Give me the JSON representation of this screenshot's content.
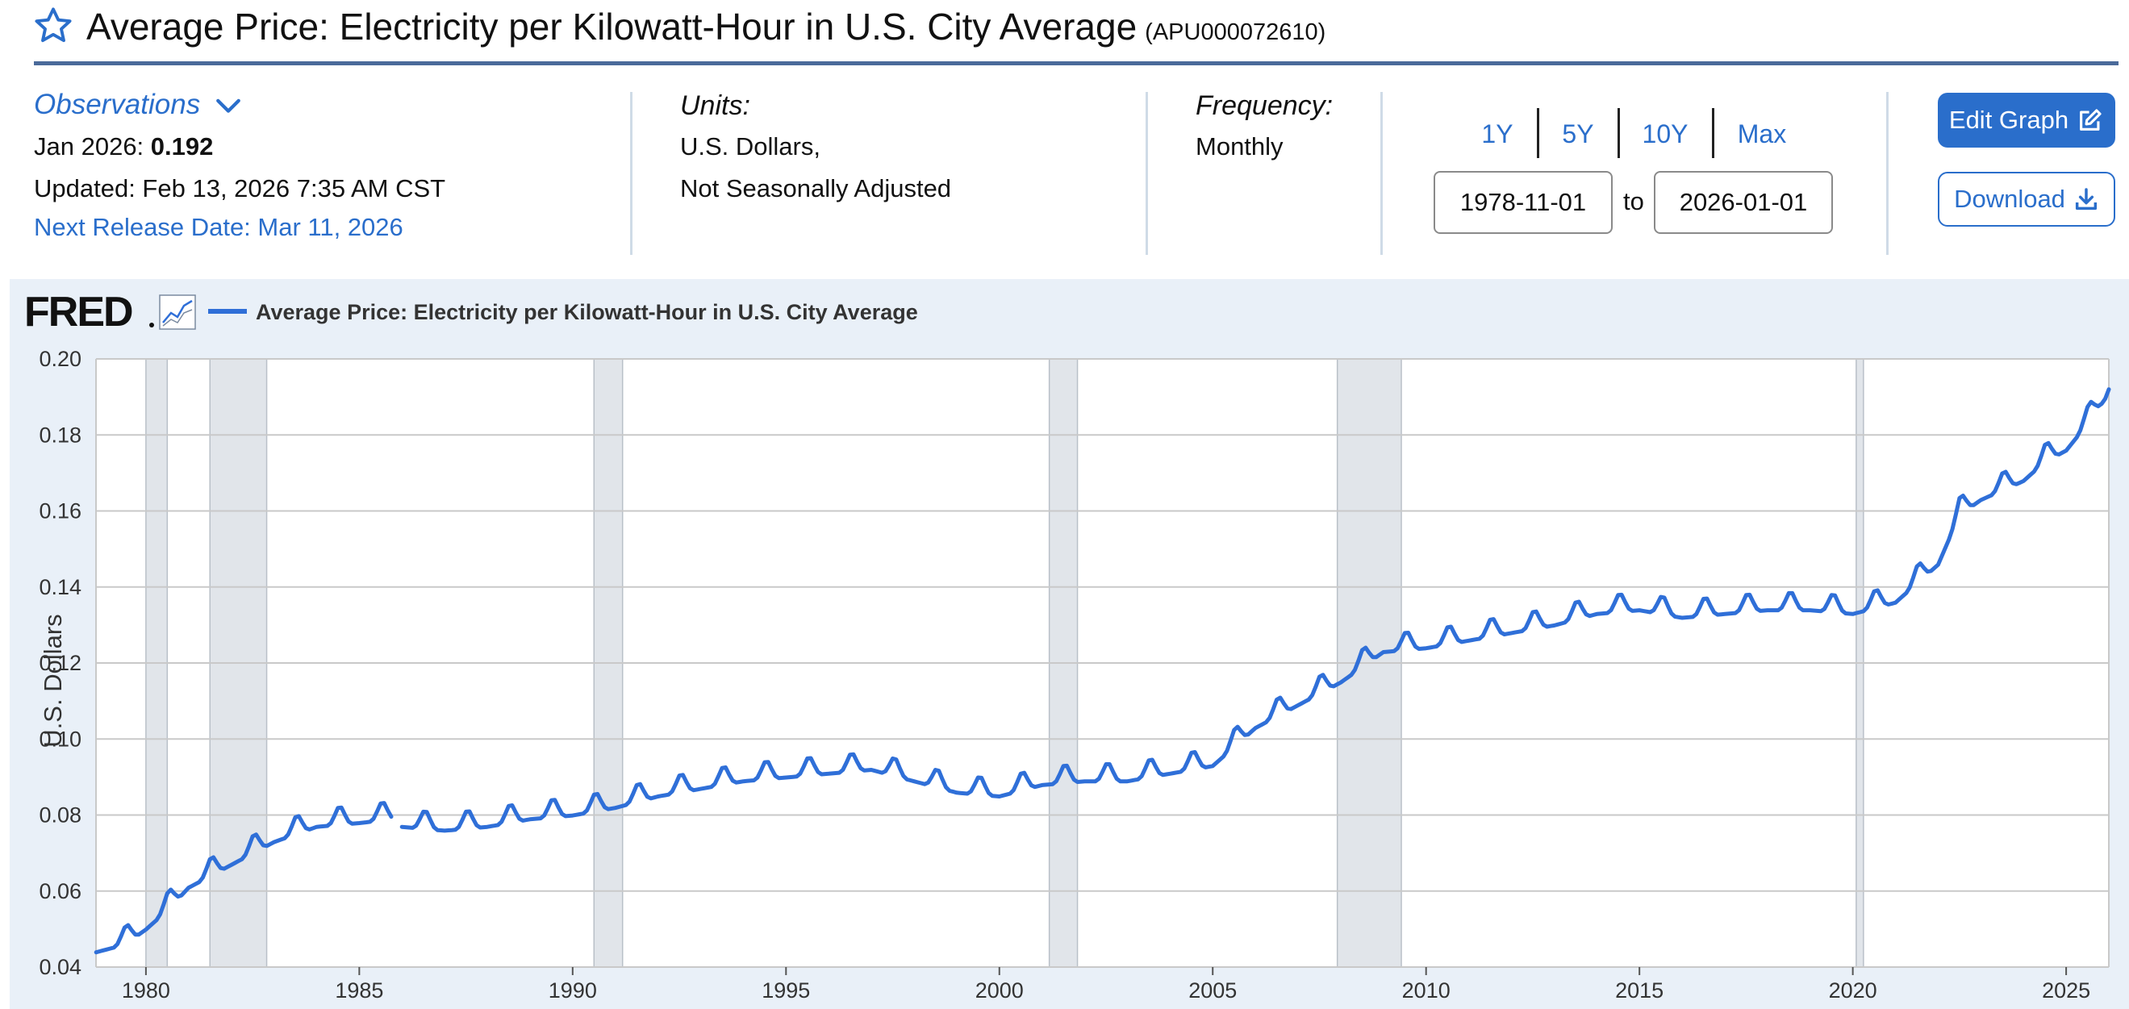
{
  "header": {
    "title": "Average Price: Electricity per Kilowatt-Hour in U.S. City Average",
    "series_id": "(APU000072610)"
  },
  "meta": {
    "observations_label": "Observations",
    "observation_date": "Jan 2026:",
    "observation_value": "0.192",
    "updated": "Updated: Feb 13, 2026 7:35 AM CST",
    "next_release": "Next Release Date: Mar 11, 2026",
    "units_label": "Units:",
    "units_line1": "U.S. Dollars,",
    "units_line2": "Not Seasonally Adjusted",
    "frequency_label": "Frequency:",
    "frequency_value": "Monthly"
  },
  "range": {
    "buttons": [
      "1Y",
      "5Y",
      "10Y",
      "Max"
    ],
    "start": "1978-11-01",
    "to_label": "to",
    "end": "2026-01-01"
  },
  "actions": {
    "edit_label": "Edit Graph",
    "download_label": "Download"
  },
  "colors": {
    "accent": "#2a6ecb",
    "line": "#2f6fd8",
    "chart_bg": "#e9f0f8",
    "recession": "#e1e5ea"
  },
  "chart_data": {
    "type": "line",
    "brand": "FRED",
    "title": "Average Price: Electricity per Kilowatt-Hour in U.S. City Average",
    "legend": "Average Price: Electricity per Kilowatt-Hour in U.S. City Average",
    "legend_position": "top-left",
    "xlabel": "",
    "ylabel": "U.S. Dollars",
    "ylim": [
      0.04,
      0.2
    ],
    "xlim": [
      1978.83,
      2026.0
    ],
    "grid": true,
    "y_ticks": [
      "0.04",
      "0.06",
      "0.08",
      "0.10",
      "0.12",
      "0.14",
      "0.16",
      "0.18",
      "0.20"
    ],
    "x_ticks": [
      "1980",
      "1985",
      "1990",
      "1995",
      "2000",
      "2005",
      "2010",
      "2015",
      "2020",
      "2025"
    ],
    "recessions": [
      [
        1980.0,
        1980.5
      ],
      [
        1981.5,
        1982.83
      ],
      [
        1990.5,
        1991.17
      ],
      [
        2001.17,
        2001.83
      ],
      [
        2007.92,
        2009.42
      ],
      [
        2020.08,
        2020.25
      ]
    ],
    "seasonal_amplitude": 0.0045,
    "gap": [
      1985.75,
      1986.0
    ],
    "anchors": [
      [
        1978.83,
        0.045
      ],
      [
        1979.5,
        0.047
      ],
      [
        1980.0,
        0.051
      ],
      [
        1980.5,
        0.056
      ],
      [
        1981.0,
        0.062
      ],
      [
        1982.0,
        0.068
      ],
      [
        1983.0,
        0.074
      ],
      [
        1984.0,
        0.078
      ],
      [
        1985.0,
        0.079
      ],
      [
        1985.75,
        0.08
      ],
      [
        1986.0,
        0.078
      ],
      [
        1987.0,
        0.077
      ],
      [
        1988.0,
        0.078
      ],
      [
        1989.0,
        0.08
      ],
      [
        1990.0,
        0.081
      ],
      [
        1991.0,
        0.083
      ],
      [
        1992.0,
        0.086
      ],
      [
        1993.0,
        0.088
      ],
      [
        1994.0,
        0.09
      ],
      [
        1995.0,
        0.091
      ],
      [
        1996.0,
        0.092
      ],
      [
        1997.0,
        0.093
      ],
      [
        1998.0,
        0.09
      ],
      [
        1999.0,
        0.087
      ],
      [
        2000.0,
        0.086
      ],
      [
        2001.0,
        0.089
      ],
      [
        2002.0,
        0.09
      ],
      [
        2003.0,
        0.09
      ],
      [
        2004.0,
        0.092
      ],
      [
        2005.0,
        0.094
      ],
      [
        2006.0,
        0.104
      ],
      [
        2007.0,
        0.11
      ],
      [
        2008.0,
        0.116
      ],
      [
        2009.0,
        0.124
      ],
      [
        2010.0,
        0.125
      ],
      [
        2011.0,
        0.127
      ],
      [
        2012.0,
        0.129
      ],
      [
        2013.0,
        0.131
      ],
      [
        2014.0,
        0.134
      ],
      [
        2015.0,
        0.135
      ],
      [
        2016.0,
        0.133
      ],
      [
        2017.0,
        0.134
      ],
      [
        2018.0,
        0.135
      ],
      [
        2019.0,
        0.135
      ],
      [
        2020.0,
        0.134
      ],
      [
        2021.0,
        0.137
      ],
      [
        2021.5,
        0.142
      ],
      [
        2022.0,
        0.147
      ],
      [
        2022.5,
        0.16
      ],
      [
        2023.0,
        0.164
      ],
      [
        2024.0,
        0.169
      ],
      [
        2024.5,
        0.174
      ],
      [
        2025.0,
        0.177
      ],
      [
        2025.5,
        0.184
      ],
      [
        2025.75,
        0.188
      ],
      [
        2026.0,
        0.192
      ]
    ]
  }
}
